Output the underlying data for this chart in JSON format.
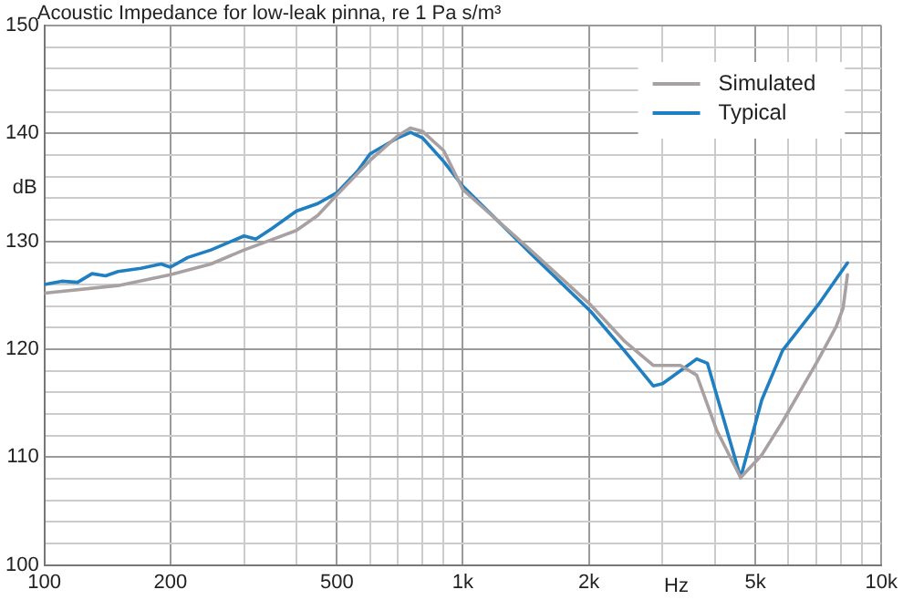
{
  "chart_data": {
    "type": "line",
    "title": "Acoustic Impedance for low-leak pinna, re 1 Pa s/m³",
    "xlabel": "Hz",
    "ylabel": "dB",
    "log": "x",
    "xlim": [
      100,
      10000
    ],
    "ylim": [
      100,
      150
    ],
    "xticks": [
      100,
      200,
      {
        "value": 300,
        "label": null
      },
      {
        "value": 400,
        "label": null
      },
      500,
      {
        "value": 600,
        "label": null
      },
      {
        "value": 700,
        "label": null
      },
      {
        "value": 800,
        "label": null
      },
      {
        "value": 900,
        "label": null
      },
      {
        "value": 1000,
        "label": "1k"
      },
      {
        "value": 2000,
        "label": "2k"
      },
      {
        "value": 3000,
        "label": null
      },
      {
        "value": 4000,
        "label": null
      },
      {
        "value": 5000,
        "label": "5k"
      },
      {
        "value": 6000,
        "label": null
      },
      {
        "value": 7000,
        "label": null
      },
      {
        "value": 8000,
        "label": null
      },
      {
        "value": 9000,
        "label": null
      },
      {
        "value": 10000,
        "label": "10k"
      }
    ],
    "yticks": [
      100,
      {
        "value": 102,
        "label": null
      },
      {
        "value": 104,
        "label": null
      },
      {
        "value": 106,
        "label": null
      },
      {
        "value": 108,
        "label": null
      },
      110,
      {
        "value": 112,
        "label": null
      },
      {
        "value": 114,
        "label": null
      },
      {
        "value": 116,
        "label": null
      },
      {
        "value": 118,
        "label": null
      },
      120,
      {
        "value": 122,
        "label": null
      },
      {
        "value": 124,
        "label": null
      },
      {
        "value": 126,
        "label": null
      },
      {
        "value": 128,
        "label": null
      },
      130,
      {
        "value": 132,
        "label": null
      },
      {
        "value": 134,
        "label": null
      },
      {
        "value": 136,
        "label": null
      },
      {
        "value": 138,
        "label": null
      },
      140,
      {
        "value": 142,
        "label": null
      },
      {
        "value": 144,
        "label": null
      },
      {
        "value": 146,
        "label": null
      },
      {
        "value": 148,
        "label": null
      },
      150
    ],
    "grid": true,
    "legend": "top right",
    "marker": "none",
    "line_style": "solid",
    "series": [
      {
        "name": "Simulated",
        "color": "#a9a1a1",
        "x": [
          100,
          150,
          200,
          250,
          300,
          400,
          450,
          500,
          600,
          700,
          750,
          800,
          900,
          1000,
          1450,
          2020,
          2440,
          2850,
          3310,
          3620,
          4040,
          4610,
          5180,
          5810,
          7060,
          7800,
          8100,
          8300
        ],
        "values": [
          125.2,
          125.9,
          126.9,
          127.9,
          129.2,
          131,
          132.4,
          134.3,
          137.5,
          139.8,
          140.5,
          140.2,
          138.4,
          134.8,
          129.2,
          124.1,
          120.7,
          118.5,
          118.5,
          117.6,
          112.5,
          108.1,
          110.2,
          113.3,
          119,
          122.1,
          123.8,
          126.9
        ]
      },
      {
        "name": "Typical",
        "color": "#1f7fc0",
        "x": [
          100,
          110,
          120,
          130,
          140,
          150,
          170,
          190,
          200,
          220,
          250,
          300,
          320,
          350,
          400,
          450,
          500,
          560,
          600,
          700,
          750,
          800,
          900,
          1000,
          1450,
          2020,
          2440,
          2850,
          3000,
          3620,
          3840,
          4610,
          5180,
          5810,
          7060,
          8300
        ],
        "values": [
          126,
          126.3,
          126.2,
          127,
          126.8,
          127.2,
          127.5,
          127.9,
          127.6,
          128.5,
          129.2,
          130.5,
          130.2,
          131.2,
          132.8,
          133.5,
          134.5,
          136.5,
          138.1,
          139.6,
          140.1,
          139.6,
          137.4,
          135.1,
          128.9,
          123.5,
          119.8,
          116.6,
          116.8,
          119.1,
          118.7,
          108.1,
          115.3,
          119.9,
          124.1,
          128
        ]
      }
    ]
  }
}
